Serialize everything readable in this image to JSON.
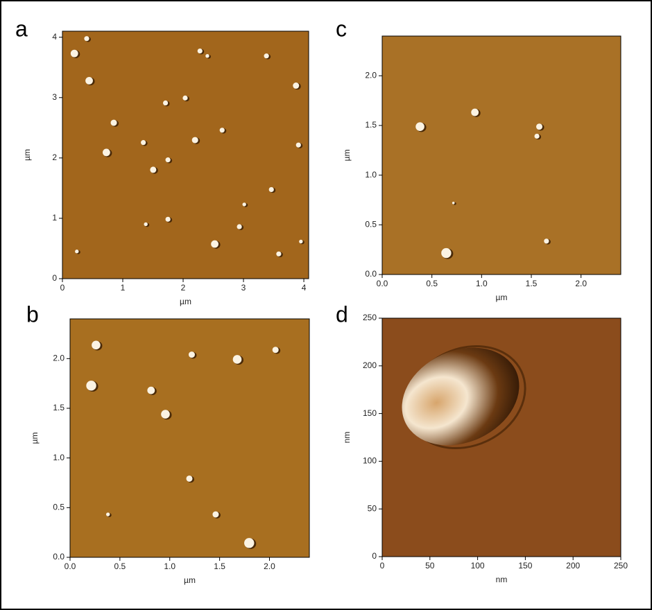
{
  "chart_data": [
    {
      "type": "image",
      "panel": "a",
      "color": "#a2661c",
      "xlabel": "µm",
      "ylabel": "µm",
      "xlim": [
        0,
        4.08
      ],
      "ylim": [
        0,
        4.1
      ],
      "xticks": [
        0,
        1,
        2,
        3,
        4
      ],
      "yticks": [
        0,
        1,
        2,
        3,
        4
      ]
    },
    {
      "type": "image",
      "panel": "b",
      "color": "#a86f20",
      "xlabel": "µm",
      "ylabel": "µm",
      "xlim": [
        0,
        2.4
      ],
      "ylim": [
        0,
        2.4
      ],
      "xticks": [
        {
          "value": 0,
          "label": "0.0"
        },
        {
          "value": 0.5,
          "label": "0.5"
        },
        {
          "value": 1,
          "label": "1.0"
        },
        {
          "value": 1.5,
          "label": "1.5"
        },
        {
          "value": 2,
          "label": "2.0"
        }
      ],
      "yticks": [
        {
          "value": 0,
          "label": "0.0"
        },
        {
          "value": 0.5,
          "label": "0.5"
        },
        {
          "value": 1,
          "label": "1.0"
        },
        {
          "value": 1.5,
          "label": "1.5"
        },
        {
          "value": 2,
          "label": "2.0"
        }
      ]
    },
    {
      "type": "image",
      "panel": "c",
      "color": "#a97126",
      "xlabel": "µm",
      "ylabel": "µm",
      "xlim": [
        0,
        2.4
      ],
      "ylim": [
        0,
        2.4
      ],
      "xticks": [
        {
          "value": 0,
          "label": "0.0"
        },
        {
          "value": 0.5,
          "label": "0.5"
        },
        {
          "value": 1,
          "label": "1.0"
        },
        {
          "value": 1.5,
          "label": "1.5"
        },
        {
          "value": 2,
          "label": "2.0"
        }
      ],
      "yticks": [
        {
          "value": 0,
          "label": "0.0"
        },
        {
          "value": 0.5,
          "label": "0.5"
        },
        {
          "value": 1,
          "label": "1.0"
        },
        {
          "value": 1.5,
          "label": "1.5"
        },
        {
          "value": 2,
          "label": "2.0"
        }
      ]
    },
    {
      "type": "image",
      "panel": "d",
      "color": "#8b4c1c",
      "xlabel": "nm",
      "ylabel": "nm",
      "xlim": [
        0,
        250
      ],
      "ylim": [
        0,
        250
      ],
      "xticks": [
        0,
        50,
        100,
        150,
        200,
        250
      ],
      "yticks": [
        0,
        50,
        100,
        150,
        200,
        250
      ]
    }
  ]
}
